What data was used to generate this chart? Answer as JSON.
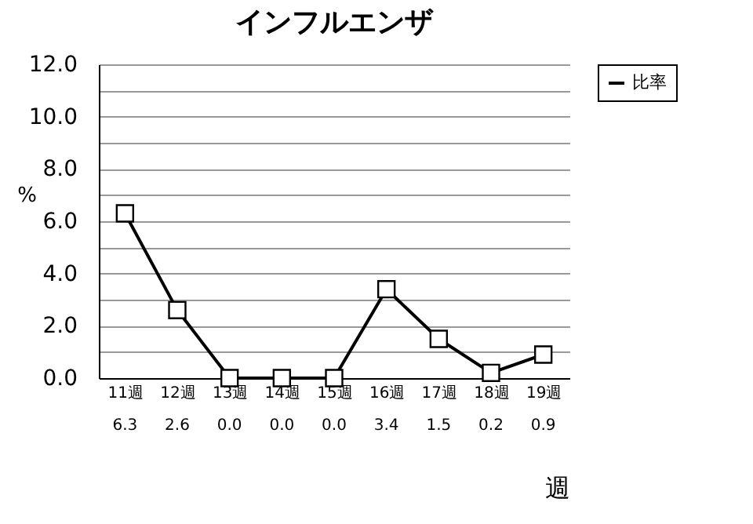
{
  "chart_data": {
    "type": "line",
    "title": "インフルエンザ",
    "xlabel": "週",
    "ylabel": "%",
    "categories": [
      "11週",
      "12週",
      "13週",
      "14週",
      "15週",
      "16週",
      "17週",
      "18週",
      "19週"
    ],
    "series": [
      {
        "name": "比率",
        "color": "#000000",
        "values": [
          6.3,
          2.6,
          0.0,
          0.0,
          0.0,
          3.4,
          1.5,
          0.2,
          0.9
        ],
        "value_labels": [
          "6.3",
          "2.6",
          "0.0",
          "0.0",
          "0.0",
          "3.4",
          "1.5",
          "0.2",
          "0.9"
        ]
      }
    ],
    "ylim": [
      0,
      12
    ],
    "yticks": [
      {
        "value": 0,
        "label": "0.0"
      },
      {
        "value": 1,
        "label": null
      },
      {
        "value": 2,
        "label": "2.0"
      },
      {
        "value": 3,
        "label": null
      },
      {
        "value": 4,
        "label": "4.0"
      },
      {
        "value": 5,
        "label": null
      },
      {
        "value": 6,
        "label": "6.0"
      },
      {
        "value": 7,
        "label": null
      },
      {
        "value": 8,
        "label": "8.0"
      },
      {
        "value": 9,
        "label": null
      },
      {
        "value": 10,
        "label": "10.0"
      },
      {
        "value": 11,
        "label": null
      },
      {
        "value": 12,
        "label": "12.0"
      }
    ],
    "grid": "y",
    "legend": "right",
    "marker": "square",
    "line_style": "solid"
  }
}
